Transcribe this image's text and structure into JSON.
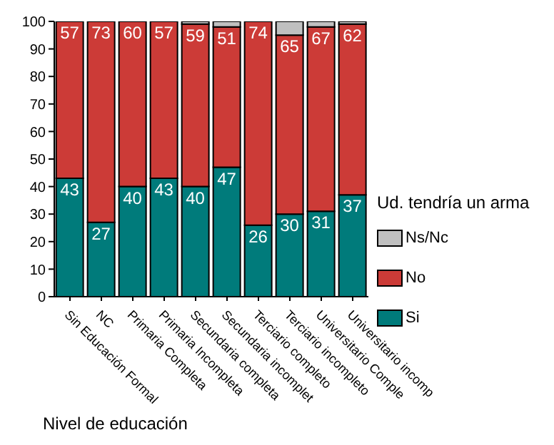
{
  "chart_data": {
    "type": "bar",
    "stacked": true,
    "xlabel": "Nivel de educación",
    "legend_title": "Ud. tendría un arma",
    "legend": "right",
    "grid": false,
    "categories": [
      "Sin Educación Formal",
      "NC",
      "Primaria Completa",
      "Primaria Incompleta",
      "Secundaria completa",
      "Secundaria incomplet",
      "Terciario completo",
      "Terciario incompleto",
      "Universitario Comple",
      "Universitario incomp"
    ],
    "ylim": [
      0,
      100
    ],
    "yticks": [
      0,
      10,
      20,
      30,
      40,
      50,
      60,
      70,
      80,
      90,
      100
    ],
    "series": [
      {
        "name": "Si",
        "color": "#007b7b",
        "values": [
          43,
          27,
          40,
          43,
          40,
          47,
          26,
          30,
          31,
          37
        ],
        "value_labels": [
          "43",
          "27",
          "40",
          "43",
          "40",
          "47",
          "26",
          "30",
          "31",
          "37"
        ]
      },
      {
        "name": "No",
        "color": "#cc3b37",
        "values": [
          57,
          73,
          60,
          57,
          59,
          51,
          74,
          65,
          67,
          62
        ],
        "value_labels": [
          "57",
          "73",
          "60",
          "57",
          "59",
          "51",
          "74",
          "65",
          "67",
          "62"
        ]
      },
      {
        "name": "Ns/Nc",
        "color": "#c0c0c0",
        "values": [
          0,
          0,
          0,
          0,
          1,
          2,
          0,
          5,
          2,
          1
        ]
      }
    ]
  }
}
